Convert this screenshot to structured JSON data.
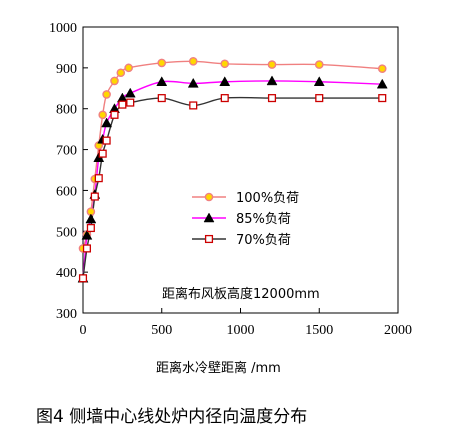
{
  "caption": "图4  侧墙中心线处炉内径向温度分布",
  "chart_data": {
    "type": "line",
    "title": "",
    "xlabel": "距离水冷壁距离 /mm",
    "ylabel": "",
    "xlim": [
      0,
      2000
    ],
    "ylim": [
      300,
      1000
    ],
    "x_ticks": [
      0,
      500,
      1000,
      1500,
      2000
    ],
    "y_ticks": [
      300,
      400,
      500,
      600,
      700,
      800,
      900,
      1000
    ],
    "grid": false,
    "legend_position": "center-right",
    "annotation": "距离布风板高度12000mm",
    "series": [
      {
        "name": "100%负荷",
        "marker": "circle",
        "color": "#f08080",
        "marker_fill": "#ffd700",
        "x": [
          0,
          25,
          50,
          75,
          100,
          125,
          150,
          200,
          240,
          290,
          500,
          700,
          900,
          1200,
          1500,
          1900
        ],
        "y": [
          458,
          492,
          548,
          628,
          710,
          785,
          835,
          868,
          888,
          900,
          912,
          916,
          910,
          908,
          908,
          898
        ]
      },
      {
        "name": "85%负荷",
        "marker": "triangle",
        "color": "#ff00ff",
        "marker_fill": "#000000",
        "x": [
          0,
          25,
          50,
          75,
          100,
          125,
          150,
          200,
          250,
          300,
          500,
          700,
          900,
          1200,
          1500,
          1900
        ],
        "y": [
          385,
          490,
          530,
          590,
          680,
          725,
          765,
          800,
          826,
          838,
          866,
          862,
          866,
          868,
          866,
          860
        ]
      },
      {
        "name": "70%负荷",
        "marker": "square",
        "color": "#333333",
        "marker_fill": "#ffffff",
        "marker_stroke": "#cc0000",
        "x": [
          0,
          25,
          50,
          75,
          100,
          125,
          150,
          200,
          250,
          300,
          500,
          700,
          900,
          1200,
          1500,
          1900
        ],
        "y": [
          385,
          458,
          508,
          585,
          630,
          690,
          722,
          785,
          810,
          815,
          826,
          808,
          826,
          826,
          826,
          826
        ]
      }
    ]
  }
}
